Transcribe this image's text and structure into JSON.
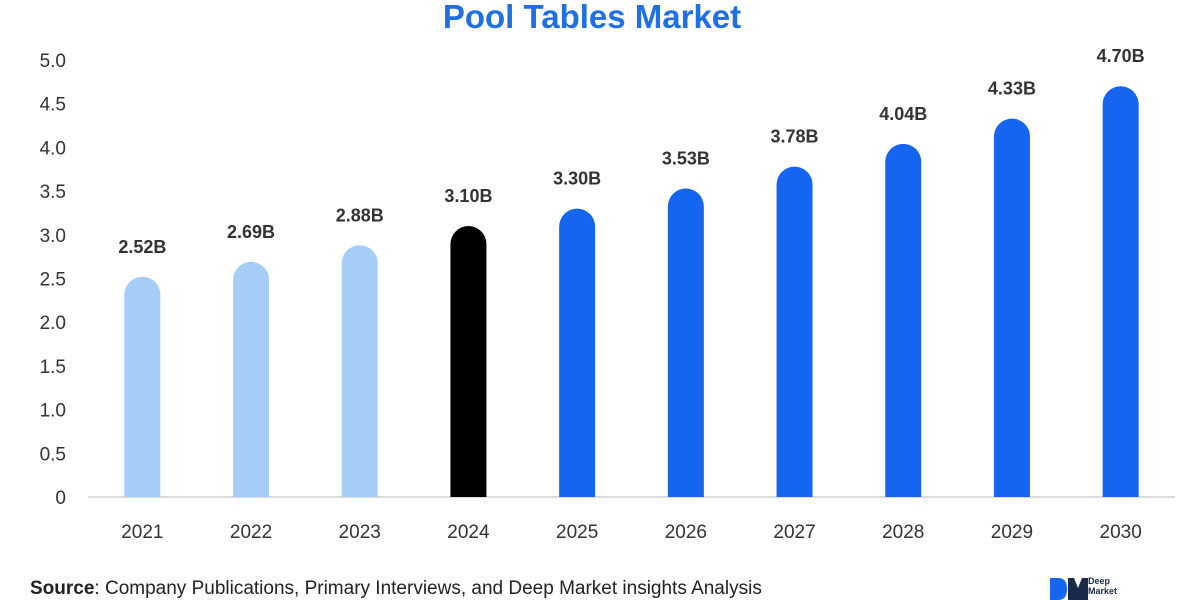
{
  "chart_data": {
    "type": "bar",
    "title": "Pool Tables Market",
    "xlabel": "",
    "ylabel": "",
    "categories": [
      "2021",
      "2022",
      "2023",
      "2024",
      "2025",
      "2026",
      "2027",
      "2028",
      "2029",
      "2030"
    ],
    "values": [
      2.52,
      2.69,
      2.88,
      3.1,
      3.3,
      3.53,
      3.78,
      4.04,
      4.33,
      4.7
    ],
    "value_labels": [
      "2.52B",
      "2.69B",
      "2.88B",
      "3.10B",
      "3.30B",
      "3.53B",
      "3.78B",
      "4.04B",
      "4.33B",
      "4.70B"
    ],
    "bar_colors": [
      "#a6cdf8",
      "#a6cdf8",
      "#a6cdf8",
      "#000000",
      "#1565f0",
      "#1565f0",
      "#1565f0",
      "#1565f0",
      "#1565f0",
      "#1565f0"
    ],
    "yticks": [
      "0",
      "0.5",
      "1.0",
      "1.5",
      "2.0",
      "2.5",
      "3.0",
      "3.5",
      "4.0",
      "4.5",
      "5.0"
    ],
    "ylim": [
      0,
      5
    ],
    "grid": false,
    "legend": "none"
  },
  "source": {
    "label": "Source",
    "text": ": Company Publications, Primary Interviews, and Deep Market insights Analysis"
  },
  "logo": {
    "line1": "Deep",
    "line2": "Market"
  },
  "colors": {
    "title": "#1f6fe5",
    "historical": "#a6cdf8",
    "base_year": "#000000",
    "forecast": "#1565f0"
  }
}
